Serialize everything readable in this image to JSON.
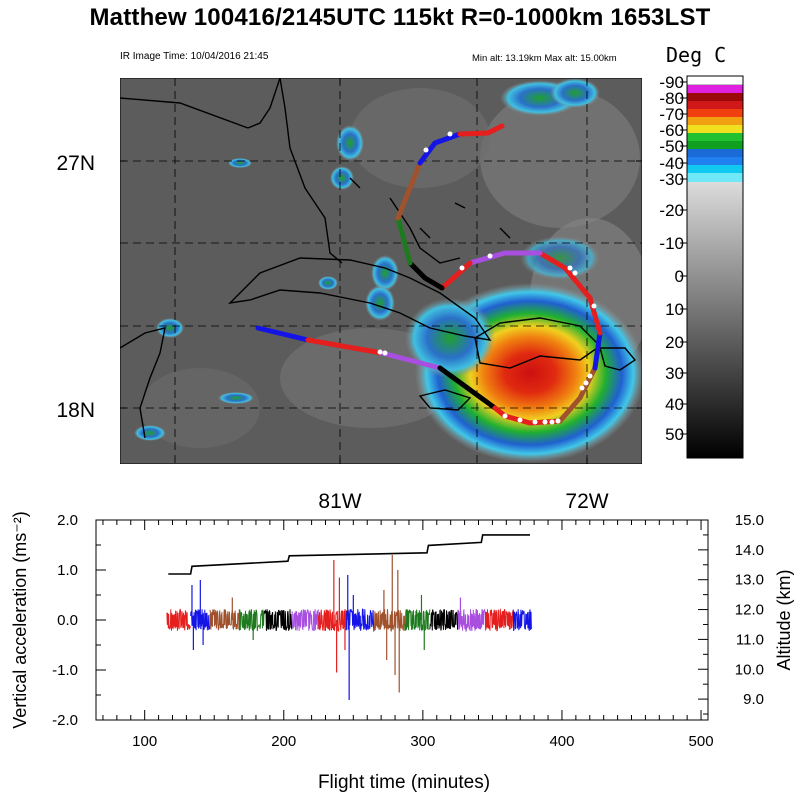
{
  "header": {
    "title": "Matthew 100416/2145UTC 115kt  R=0-1000km 1653LST",
    "ir_time": "IR Image Time: 10/04/2016 21:45",
    "alt_range": "Min alt: 13.19km  Max alt: 15.00km"
  },
  "colorbar": {
    "title": "Deg C",
    "labels": [
      "-90",
      "-80",
      "-70",
      "-60",
      "-50",
      "-40",
      "-30",
      "-20",
      "-10",
      "0",
      "10",
      "20",
      "30",
      "40",
      "50"
    ]
  },
  "map": {
    "lat_labels": [
      "27N",
      "18N"
    ],
    "lon_labels": [
      "81W",
      "72W"
    ]
  },
  "colors": {
    "red": "#e51e1e",
    "blue": "#1414e6",
    "brown": "#a0522d",
    "green": "#1e7a1e",
    "black": "#000000",
    "purple": "#a84fe0"
  },
  "chart_data": {
    "type": "line",
    "xlabel": "Flight time (minutes)",
    "ylabel": "Vertical acceleration (ms⁻²)",
    "y2label": "Altitude (km)",
    "xlim": [
      65,
      505
    ],
    "ylim": [
      -2.0,
      2.0
    ],
    "y2lim": [
      8.3,
      15.0
    ],
    "xticks": [
      "100",
      "200",
      "300",
      "400",
      "500"
    ],
    "yticks": [
      "-2.0",
      "-1.0",
      "0.0",
      "1.0",
      "2.0"
    ],
    "y2ticks": [
      "9.0",
      "10.0",
      "11.0",
      "12.0",
      "13.0",
      "14.0",
      "15.0"
    ],
    "altitude": {
      "x": [
        117,
        133,
        134,
        203,
        204,
        303,
        304,
        342,
        343,
        377
      ],
      "y": [
        13.19,
        13.19,
        13.45,
        13.62,
        13.8,
        13.9,
        14.15,
        14.25,
        14.5,
        14.5
      ]
    },
    "acceleration_segments": [
      {
        "color": "red",
        "start": 116,
        "end": 133
      },
      {
        "color": "blue",
        "start": 133,
        "end": 147
      },
      {
        "color": "brown",
        "start": 147,
        "end": 168
      },
      {
        "color": "green",
        "start": 168,
        "end": 186
      },
      {
        "color": "black",
        "start": 186,
        "end": 206
      },
      {
        "color": "purple",
        "start": 206,
        "end": 225
      },
      {
        "color": "red",
        "start": 225,
        "end": 245
      },
      {
        "color": "blue",
        "start": 245,
        "end": 265
      },
      {
        "color": "brown",
        "start": 265,
        "end": 287
      },
      {
        "color": "green",
        "start": 287,
        "end": 305
      },
      {
        "color": "black",
        "start": 305,
        "end": 325
      },
      {
        "color": "purple",
        "start": 325,
        "end": 345
      },
      {
        "color": "red",
        "start": 345,
        "end": 365
      },
      {
        "color": "blue",
        "start": 365,
        "end": 378
      }
    ],
    "acceleration_spikes": [
      {
        "x": 134,
        "y": 0.7
      },
      {
        "x": 135,
        "y": -0.6
      },
      {
        "x": 140,
        "y": 0.8
      },
      {
        "x": 142,
        "y": -0.5
      },
      {
        "x": 163,
        "y": 0.45
      },
      {
        "x": 178,
        "y": -0.4
      },
      {
        "x": 236,
        "y": 1.2
      },
      {
        "x": 238,
        "y": -1.05
      },
      {
        "x": 240,
        "y": 0.85
      },
      {
        "x": 244,
        "y": -0.6
      },
      {
        "x": 246,
        "y": 0.9
      },
      {
        "x": 247,
        "y": -1.6
      },
      {
        "x": 250,
        "y": 0.5
      },
      {
        "x": 272,
        "y": 0.6
      },
      {
        "x": 274,
        "y": -0.8
      },
      {
        "x": 278,
        "y": 1.3
      },
      {
        "x": 280,
        "y": -1.1
      },
      {
        "x": 282,
        "y": 1.0
      },
      {
        "x": 283,
        "y": -1.45
      },
      {
        "x": 299,
        "y": 0.5
      },
      {
        "x": 301,
        "y": -0.6
      },
      {
        "x": 327,
        "y": 0.45
      }
    ]
  }
}
